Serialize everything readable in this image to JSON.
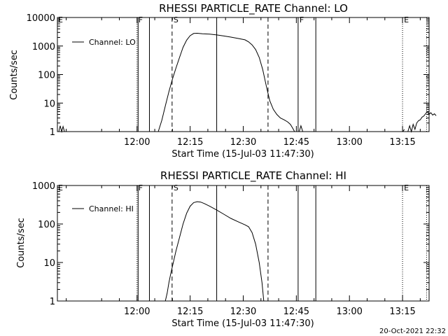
{
  "chart_data": [
    {
      "type": "line",
      "title": "RHESSI PARTICLE_RATE Channel: LO",
      "xlabel": "Start Time (15-Jul-03 11:47:30)",
      "ylabel": "Counts/sec",
      "yscale": "log",
      "ylim": [
        1,
        10000
      ],
      "xlim_minutes": [
        -10,
        95
      ],
      "y_ticks": [
        {
          "value": 1,
          "label": "1"
        },
        {
          "value": 10,
          "label": "10"
        },
        {
          "value": 100,
          "label": "100"
        },
        {
          "value": 1000,
          "label": "1000"
        },
        {
          "value": 10000,
          "label": "10000"
        }
      ],
      "x_ticks": [
        {
          "value": 12.5,
          "label": "12:00"
        },
        {
          "value": 27.5,
          "label": "12:15"
        },
        {
          "value": 42.5,
          "label": "12:30"
        },
        {
          "value": 57.5,
          "label": "12:45"
        },
        {
          "value": 72.5,
          "label": "13:00"
        },
        {
          "value": 87.5,
          "label": "13:15"
        }
      ],
      "legend": "Channel: LO",
      "event_markers": [
        {
          "t": 12.5,
          "label": "F",
          "style": "dotted"
        },
        {
          "t": 12.8,
          "label": "",
          "style": "solid"
        },
        {
          "t": 16.0,
          "label": "",
          "style": "solid"
        },
        {
          "t": 22.4,
          "label": "S",
          "style": "dashed"
        },
        {
          "t": 35.0,
          "label": "",
          "style": "solid"
        },
        {
          "t": 49.5,
          "label": "",
          "style": "dashed"
        },
        {
          "t": 58.0,
          "label": "F",
          "style": "solid"
        },
        {
          "t": 63.0,
          "label": "",
          "style": "solid"
        },
        {
          "t": 87.5,
          "label": "E",
          "style": "dotted"
        },
        {
          "t": 94.3,
          "label": "",
          "style": "dotted"
        }
      ],
      "series": [
        {
          "name": "Channel: LO",
          "segments": [
            [
              [
                -9.6,
                1
              ],
              [
                -9.2,
                1.6
              ],
              [
                -8.8,
                1
              ],
              [
                -8.4,
                1.5
              ],
              [
                -8.0,
                1
              ]
            ],
            [
              [
                18.5,
                1
              ],
              [
                19.5,
                2.5
              ],
              [
                20.5,
                8
              ],
              [
                21.5,
                25
              ],
              [
                22.5,
                70
              ],
              [
                23.5,
                170
              ],
              [
                24.5,
                400
              ],
              [
                25.5,
                900
              ],
              [
                26.5,
                1600
              ],
              [
                27.5,
                2300
              ],
              [
                28.5,
                2750
              ],
              [
                29.5,
                2800
              ],
              [
                31,
                2700
              ],
              [
                33,
                2600
              ],
              [
                35,
                2450
              ],
              [
                37,
                2250
              ],
              [
                39,
                2050
              ],
              [
                41,
                1850
              ],
              [
                43,
                1650
              ],
              [
                44,
                1400
              ],
              [
                45,
                1100
              ],
              [
                46,
                750
              ],
              [
                47,
                400
              ],
              [
                48,
                150
              ],
              [
                49,
                40
              ],
              [
                50,
                12
              ],
              [
                51,
                6
              ],
              [
                52,
                4
              ],
              [
                53,
                3
              ],
              [
                54,
                2.6
              ],
              [
                55,
                2.2
              ],
              [
                55.8,
                1.8
              ],
              [
                56.5,
                1.3
              ],
              [
                57,
                1
              ]
            ],
            [
              [
                58.3,
                1
              ],
              [
                58.8,
                1.6
              ],
              [
                59.3,
                1
              ]
            ],
            [
              [
                87.6,
                1
              ],
              [
                88.0,
                1.2
              ]
            ],
            [
              [
                89.0,
                1
              ],
              [
                89.5,
                1.6
              ],
              [
                90.0,
                1
              ],
              [
                90.5,
                1.8
              ],
              [
                91.0,
                1.2
              ],
              [
                91.5,
                2
              ],
              [
                92,
                2.4
              ],
              [
                92.5,
                2.6
              ],
              [
                93,
                3.2
              ],
              [
                93.5,
                3.5
              ],
              [
                94,
                4.2
              ],
              [
                94.5,
                5
              ],
              [
                95,
                4
              ],
              [
                95.5,
                4.6
              ],
              [
                96,
                3.8
              ],
              [
                96.5,
                4.2
              ],
              [
                97,
                3.6
              ]
            ]
          ]
        }
      ]
    },
    {
      "type": "line",
      "title": "RHESSI PARTICLE_RATE Channel: HI",
      "xlabel": "Start Time (15-Jul-03 11:47:30)",
      "ylabel": "Counts/sec",
      "yscale": "log",
      "ylim": [
        1,
        1000
      ],
      "xlim_minutes": [
        -10,
        95
      ],
      "y_ticks": [
        {
          "value": 1,
          "label": "1"
        },
        {
          "value": 10,
          "label": "10"
        },
        {
          "value": 100,
          "label": "100"
        },
        {
          "value": 1000,
          "label": "1000"
        }
      ],
      "x_ticks": [
        {
          "value": 12.5,
          "label": "12:00"
        },
        {
          "value": 27.5,
          "label": "12:15"
        },
        {
          "value": 42.5,
          "label": "12:30"
        },
        {
          "value": 57.5,
          "label": "12:45"
        },
        {
          "value": 72.5,
          "label": "13:00"
        },
        {
          "value": 87.5,
          "label": "13:15"
        }
      ],
      "legend": "Channel: HI",
      "event_markers": [
        {
          "t": 12.5,
          "label": "F",
          "style": "dotted"
        },
        {
          "t": 12.8,
          "label": "",
          "style": "solid"
        },
        {
          "t": 16.0,
          "label": "",
          "style": "solid"
        },
        {
          "t": 22.4,
          "label": "S",
          "style": "dashed"
        },
        {
          "t": 35.0,
          "label": "",
          "style": "solid"
        },
        {
          "t": 49.5,
          "label": "",
          "style": "dashed"
        },
        {
          "t": 58.0,
          "label": "",
          "style": "solid"
        },
        {
          "t": 63.0,
          "label": "",
          "style": "solid"
        },
        {
          "t": 87.5,
          "label": "E",
          "style": "dotted"
        },
        {
          "t": 94.3,
          "label": "",
          "style": "dotted"
        }
      ],
      "series": [
        {
          "name": "Channel: HI",
          "segments": [
            [
              [
                20.5,
                1
              ],
              [
                21,
                1.6
              ],
              [
                21.5,
                3
              ],
              [
                22,
                5
              ],
              [
                22.5,
                8
              ],
              [
                23.5,
                20
              ],
              [
                24.5,
                45
              ],
              [
                25.5,
                100
              ],
              [
                26.5,
                190
              ],
              [
                27.5,
                290
              ],
              [
                28.5,
                360
              ],
              [
                29.5,
                380
              ],
              [
                30.5,
                370
              ],
              [
                31.5,
                340
              ],
              [
                33,
                290
              ],
              [
                35,
                230
              ],
              [
                37,
                180
              ],
              [
                39,
                140
              ],
              [
                41,
                115
              ],
              [
                43,
                95
              ],
              [
                44,
                85
              ],
              [
                45,
                60
              ],
              [
                46,
                30
              ],
              [
                47,
                10
              ],
              [
                47.8,
                3
              ],
              [
                48.3,
                1
              ]
            ]
          ]
        }
      ]
    }
  ],
  "footer": {
    "date": "20-Oct-2021 22:32"
  }
}
